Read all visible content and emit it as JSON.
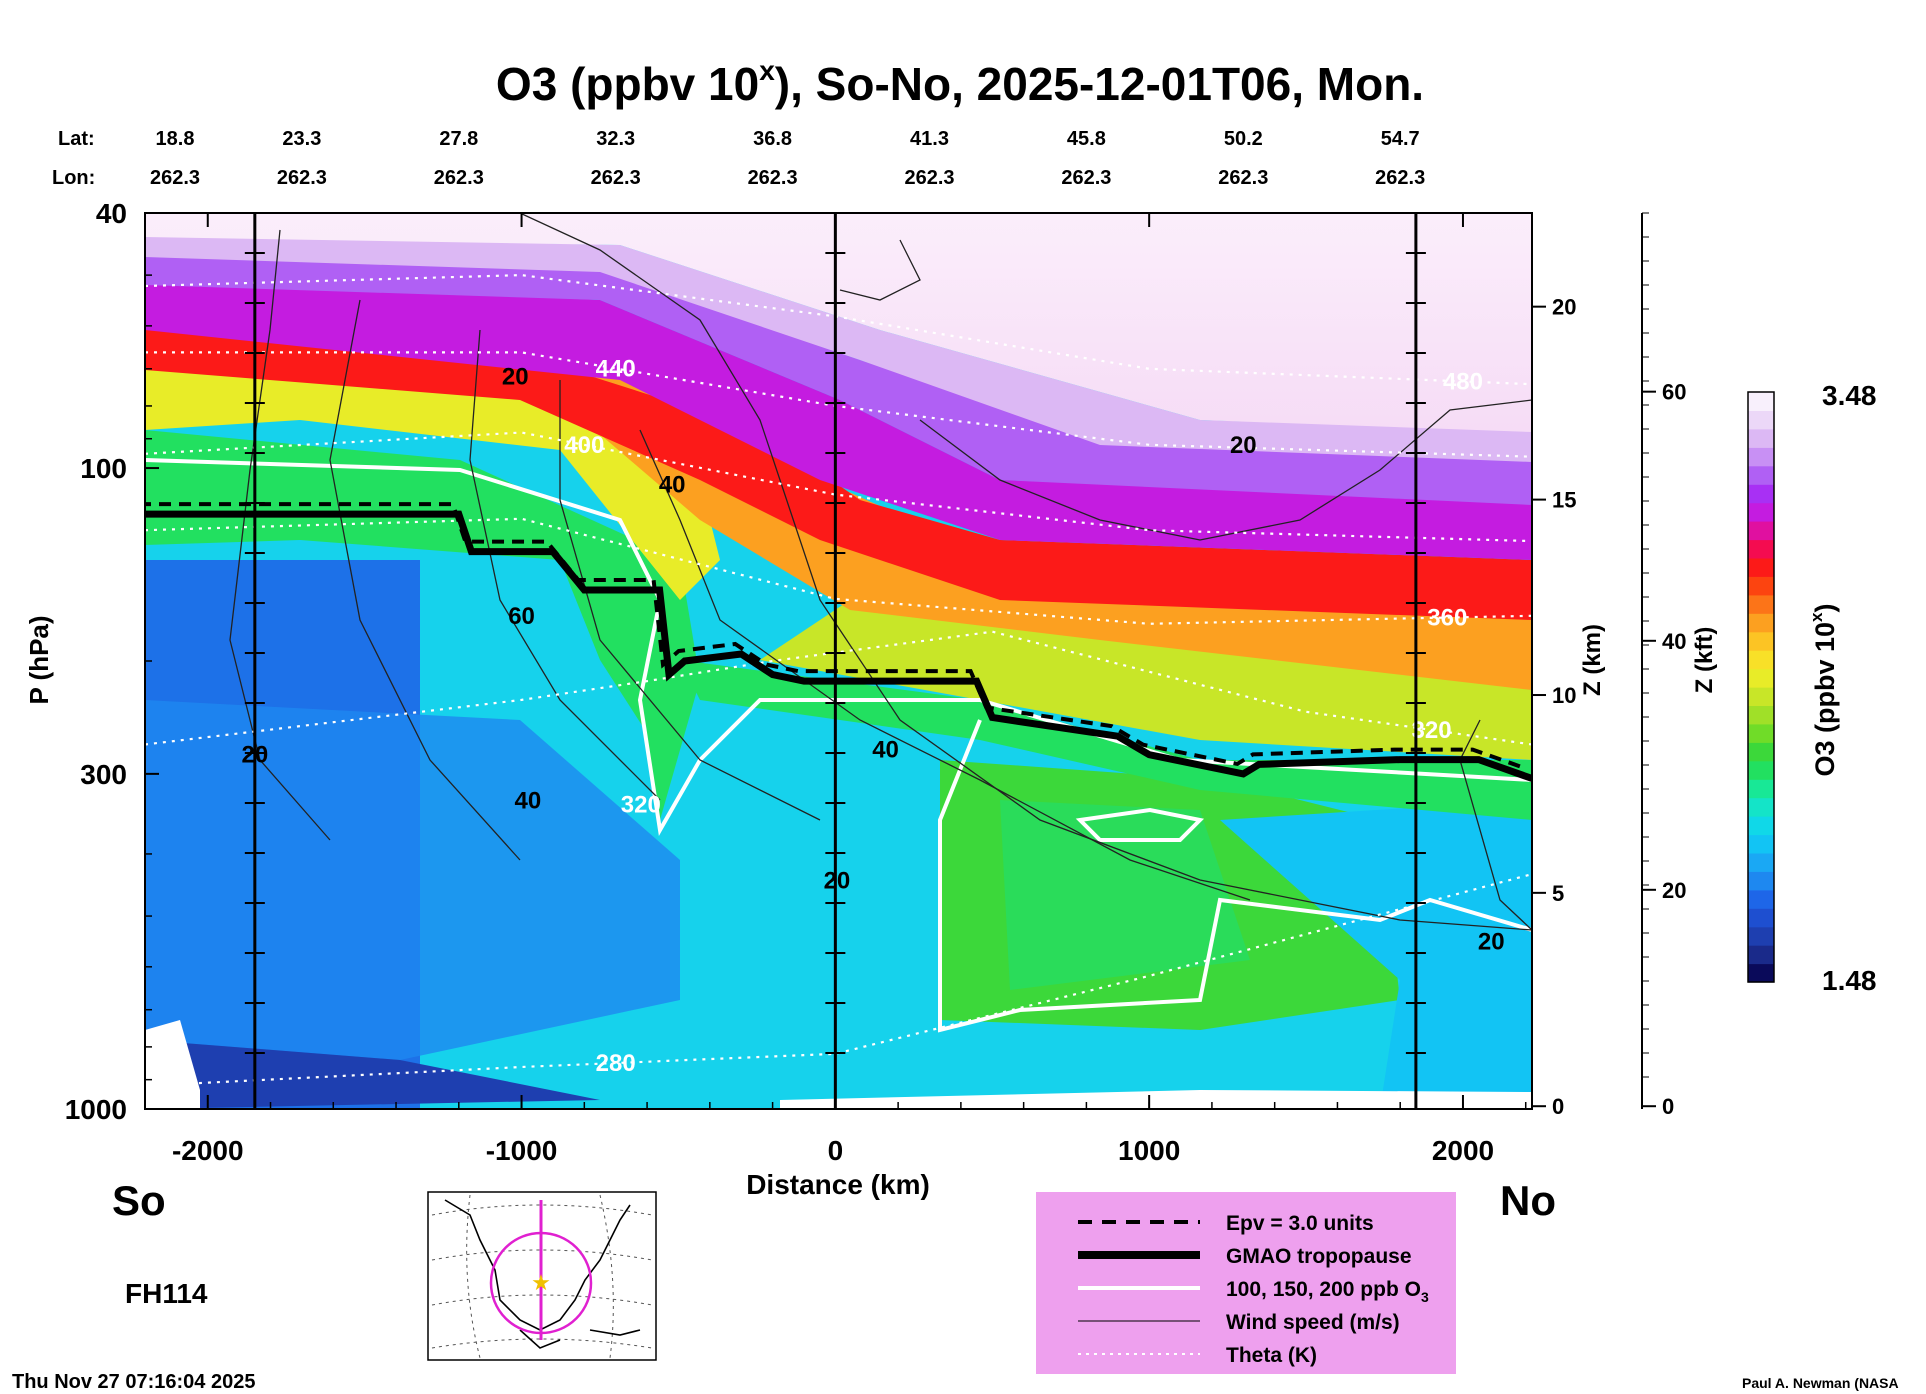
{
  "chart_data": {
    "type": "heatmap",
    "title": "O3 (ppbv 10",
    "title_sup": "x",
    "title_rest": "), So-No, 2025-12-01T06, Mon.",
    "xlabel": "Distance (km)",
    "ylabel": "P (hPa)",
    "xlim": [
      -2200,
      2220
    ],
    "ylim": [
      1000,
      40
    ],
    "y_scale": "log",
    "x_ticks": [
      -2000,
      -1000,
      0,
      1000,
      2000
    ],
    "x_tick_labels": [
      "-2000",
      "-1000",
      "0",
      "1000",
      "2000"
    ],
    "y_ticks": [
      40,
      100,
      300,
      1000
    ],
    "y_tick_labels": [
      "40",
      "100",
      "300",
      "1000"
    ],
    "z_km_label": "Z (km)",
    "z_km_ticks": [
      {
        "label": "20",
        "p": 56
      },
      {
        "label": "15",
        "p": 112
      },
      {
        "label": "10",
        "p": 226
      },
      {
        "label": "5",
        "p": 460
      },
      {
        "label": "0",
        "p": 990
      }
    ],
    "z_kft_label": "Z (kft)",
    "z_kft_ticks": [
      {
        "label": "60",
        "p": 76
      },
      {
        "label": "40",
        "p": 186
      },
      {
        "label": "20",
        "p": 455
      },
      {
        "label": "0",
        "p": 990
      }
    ],
    "lat_label": "Lat:",
    "lon_label": "Lon:",
    "lat_values": [
      "18.8",
      "23.3",
      "27.8",
      "32.3",
      "36.8",
      "41.3",
      "45.8",
      "50.2",
      "54.7"
    ],
    "lon_values": [
      "262.3",
      "262.3",
      "262.3",
      "262.3",
      "262.3",
      "262.3",
      "262.3",
      "262.3",
      "262.3"
    ],
    "lat_lon_x": [
      -2200,
      -1700,
      -1200,
      -700,
      -200,
      300,
      800,
      1300,
      1800
    ],
    "vertical_markers_x": [
      -1850,
      0,
      1850
    ],
    "tropopause": {
      "x": [
        -2200,
        -1200,
        -1160,
        -900,
        -800,
        -560,
        -530,
        -480,
        -300,
        -200,
        -100,
        450,
        500,
        900,
        1000,
        1300,
        1350,
        1800,
        2050,
        2220
      ],
      "p": [
        118,
        118,
        135,
        135,
        155,
        155,
        210,
        200,
        195,
        210,
        215,
        215,
        245,
        262,
        280,
        300,
        290,
        285,
        285,
        305
      ]
    },
    "theta_contours": [
      {
        "label": "280",
        "x": [
          -2200,
          -1000,
          0,
          1000,
          2220
        ],
        "p": [
          920,
          860,
          820,
          620,
          430
        ],
        "label_x": -700
      },
      {
        "label": "320",
        "x": [
          -2200,
          -1000,
          -600,
          -200,
          500,
          1500,
          2220
        ],
        "p": [
          270,
          230,
          215,
          200,
          180,
          240,
          270
        ],
        "label_x": 1900
      },
      {
        "label": "360",
        "x": [
          -2200,
          -1000,
          0,
          1000,
          2220
        ],
        "p": [
          125,
          120,
          160,
          175,
          170
        ],
        "label_x": 1950
      },
      {
        "label": "400",
        "x": [
          -2200,
          -1000,
          0,
          1000,
          2220
        ],
        "p": [
          95,
          88,
          110,
          125,
          130
        ],
        "label_x": -800
      },
      {
        "label": "440",
        "x": [
          -2200,
          -1000,
          0,
          1000,
          2220
        ],
        "p": [
          66,
          66,
          80,
          92,
          96
        ],
        "label_x": -700
      },
      {
        "label": "480",
        "x": [
          -2200,
          -1000,
          0,
          1000,
          2220
        ],
        "p": [
          52,
          50,
          58,
          70,
          74
        ],
        "label_x": 2000
      }
    ],
    "wind_contour_labels": [
      {
        "label": "20",
        "x": -1020,
        "p": 72
      },
      {
        "label": "40",
        "x": -520,
        "p": 106
      },
      {
        "label": "60",
        "x": -1000,
        "p": 170
      },
      {
        "label": "20",
        "x": -1850,
        "p": 280
      },
      {
        "label": "40",
        "x": -980,
        "p": 330
      },
      {
        "label": "40",
        "x": 160,
        "p": 275
      },
      {
        "label": "20",
        "x": 5,
        "p": 440
      },
      {
        "label": "20",
        "x": 1300,
        "p": 92
      },
      {
        "label": "20",
        "x": 2090,
        "p": 548
      }
    ],
    "o3_contour_label": {
      "label": "320",
      "x": -620,
      "p": 335
    },
    "left_label": "So",
    "right_label": "No",
    "forecast_hour": "FH114",
    "timestamp": "Thu Nov 27 07:16:04 2025",
    "credit": "Paul A. Newman (NASA",
    "colorbar": {
      "label": "O3 (ppbv 10",
      "label_sup": "x",
      "label_end": ")",
      "min": 1.48,
      "max": 3.48,
      "min_label": "1.48",
      "max_label": "3.48",
      "colors": [
        "#0a0a5a",
        "#1a2a8a",
        "#1e3fb0",
        "#1e4fd0",
        "#1e66e8",
        "#1e88f0",
        "#1aa8f4",
        "#12c4f4",
        "#10d8e8",
        "#14e4c8",
        "#18e896",
        "#22e060",
        "#3cd83a",
        "#70dc28",
        "#a0e028",
        "#c8e628",
        "#e8ec28",
        "#f8e028",
        "#fcc424",
        "#fca020",
        "#fc7418",
        "#fc4410",
        "#fc1a18",
        "#f40c50",
        "#e010a0",
        "#c41ce0",
        "#a830f4",
        "#b060f4",
        "#c890f4",
        "#dcb8f4",
        "#ecd8f8",
        "#f8f0fc"
      ]
    },
    "legend": [
      {
        "label": "Epv = 3.0 units",
        "style": "dashed"
      },
      {
        "label": "GMAO tropopause",
        "style": "thick"
      },
      {
        "label": "100, 150, 200 ppb O",
        "sub": "3",
        "style": "white"
      },
      {
        "label": "Wind speed (m/s)",
        "style": "thin"
      },
      {
        "label": "Theta (K)",
        "style": "dotted"
      }
    ]
  }
}
